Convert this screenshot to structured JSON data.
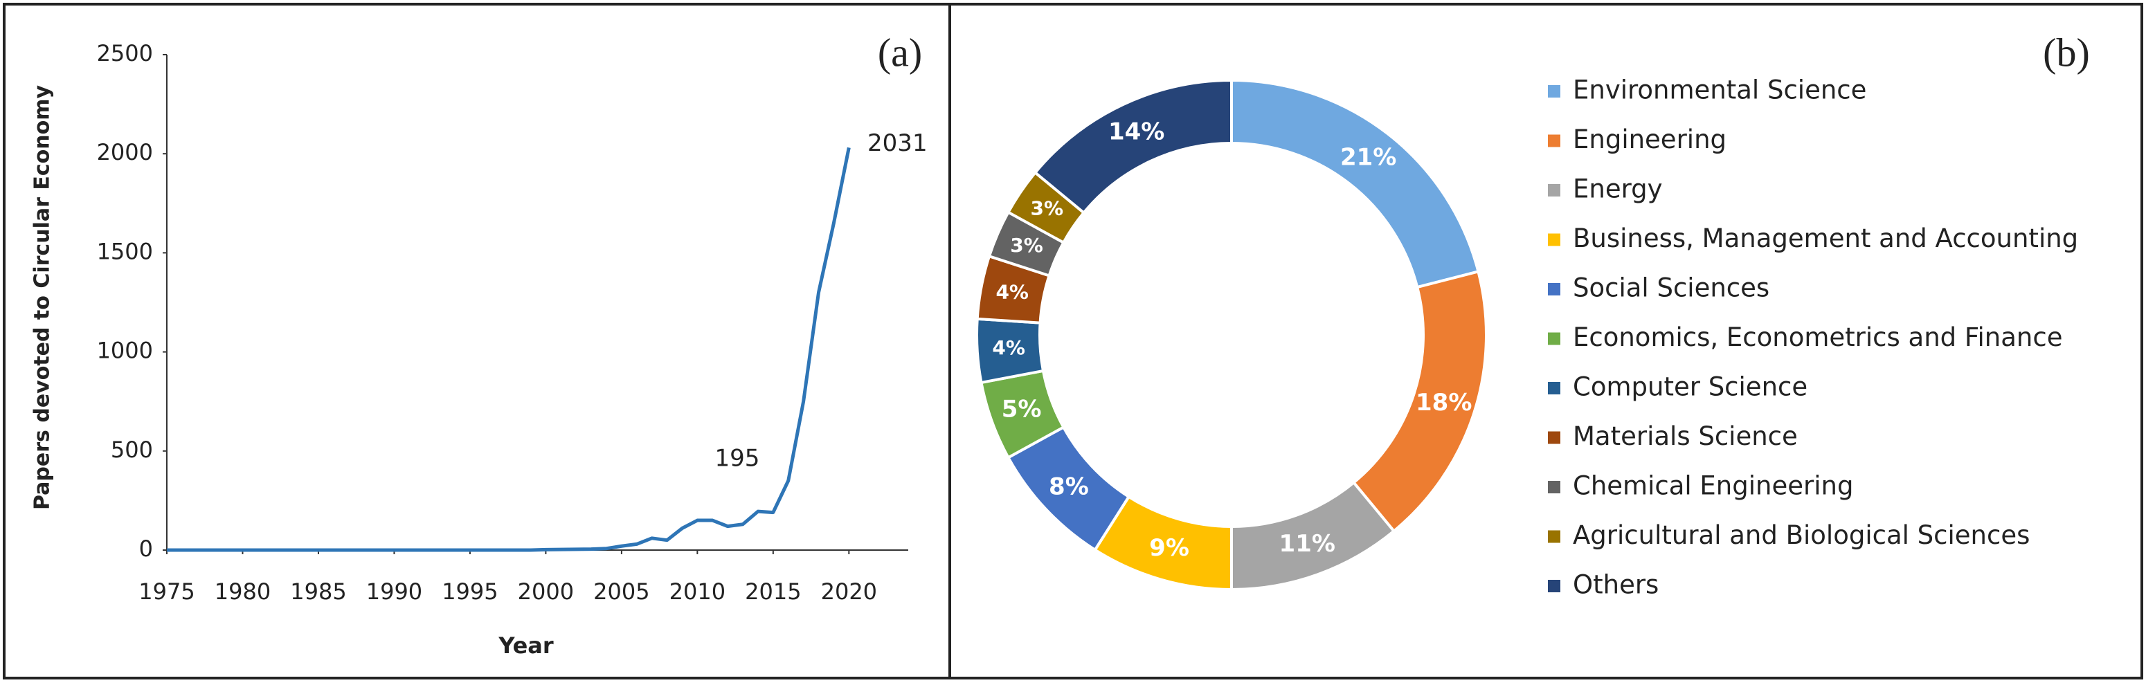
{
  "chart_data": [
    {
      "type": "line",
      "panel_label": "(a)",
      "x_label": "Year",
      "y_label": "Papers devoted to Circular Economy",
      "x": [
        1975,
        1976,
        1977,
        1978,
        1979,
        1980,
        1981,
        1982,
        1983,
        1984,
        1985,
        1986,
        1987,
        1988,
        1989,
        1990,
        1991,
        1992,
        1993,
        1994,
        1995,
        1996,
        1997,
        1998,
        1999,
        2000,
        2001,
        2002,
        2003,
        2004,
        2005,
        2006,
        2007,
        2008,
        2009,
        2010,
        2011,
        2012,
        2013,
        2014,
        2015,
        2016,
        2017,
        2018,
        2019,
        2020
      ],
      "values": [
        0,
        0,
        0,
        0,
        0,
        0,
        0,
        0,
        0,
        0,
        0,
        0,
        0,
        0,
        0,
        0,
        0,
        0,
        0,
        0,
        0,
        0,
        0,
        0,
        0,
        2,
        3,
        4,
        5,
        8,
        20,
        30,
        60,
        50,
        110,
        150,
        150,
        120,
        130,
        195,
        190,
        350,
        750,
        1300,
        1650,
        2031
      ],
      "color": "#2e75b6",
      "data_labels_at": [
        2014,
        2020
      ],
      "xlim": [
        1975,
        2023
      ],
      "xticks": [
        1975,
        1980,
        1985,
        1990,
        1995,
        2000,
        2005,
        2010,
        2015,
        2020
      ],
      "ylim": [
        0,
        2500
      ],
      "yticks": [
        0,
        500,
        1000,
        1500,
        2000,
        2500
      ],
      "grid": false
    },
    {
      "type": "donut",
      "panel_label": "(b)",
      "categories": [
        "Environmental Science",
        "Engineering",
        "Energy",
        "Business, Management and Accounting",
        "Social Sciences",
        "Economics, Econometrics and Finance",
        "Computer Science",
        "Materials Science",
        "Chemical Engineering",
        "Agricultural and Biological Sciences",
        "Others"
      ],
      "values": [
        21,
        18,
        11,
        9,
        8,
        5,
        4,
        4,
        3,
        3,
        14
      ],
      "value_labels": [
        "21%",
        "18%",
        "11%",
        "9%",
        "8%",
        "5%",
        "4%",
        "4%",
        "3%",
        "3%",
        "14%"
      ],
      "colors": [
        "#6fa8e0",
        "#ed7d31",
        "#a5a5a5",
        "#ffc000",
        "#4472c4",
        "#70ad47",
        "#255e91",
        "#9e480e",
        "#636363",
        "#997300",
        "#264478"
      ]
    }
  ]
}
